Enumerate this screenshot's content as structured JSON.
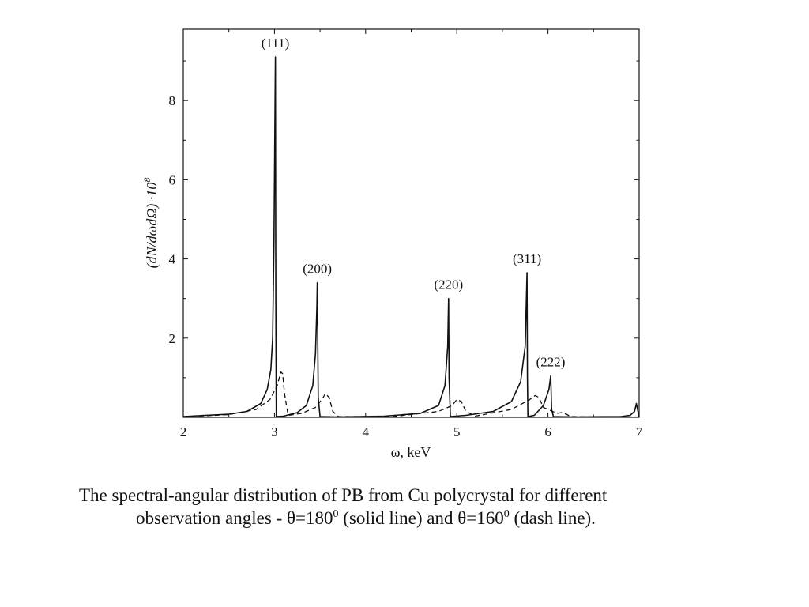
{
  "chart_data": {
    "type": "line",
    "xlabel": "ω, keV",
    "ylabel_main": "(dN/dωdΩ) ·10",
    "ylabel_exp": "8",
    "xlim": [
      2,
      7
    ],
    "ylim": [
      0,
      9.8
    ],
    "x_ticks": [
      "2",
      "3",
      "4",
      "5",
      "6",
      "7"
    ],
    "y_ticks": [
      "2",
      "4",
      "6",
      "8"
    ],
    "grid": false,
    "peaks": [
      {
        "label": "(111)",
        "x": 3.01,
        "y": 9.1
      },
      {
        "label": "(200)",
        "x": 3.47,
        "y": 3.4
      },
      {
        "label": "(220)",
        "x": 4.91,
        "y": 3.0
      },
      {
        "label": "(311)",
        "x": 5.77,
        "y": 3.65
      },
      {
        "label": "(222)",
        "x": 6.03,
        "y": 1.05
      }
    ],
    "series": [
      {
        "line_style": "solid",
        "x": [
          2.0,
          2.5,
          2.7,
          2.85,
          2.92,
          2.96,
          2.98,
          2.995,
          3.01,
          3.015,
          3.02,
          3.1,
          3.25,
          3.35,
          3.42,
          3.45,
          3.465,
          3.47,
          3.48,
          3.5,
          3.7,
          4.2,
          4.6,
          4.8,
          4.87,
          4.9,
          4.91,
          4.915,
          4.93,
          5.1,
          5.4,
          5.6,
          5.7,
          5.75,
          5.77,
          5.775,
          5.78,
          5.85,
          5.95,
          6.01,
          6.03,
          6.04,
          6.06,
          6.3,
          6.8,
          6.9,
          6.95,
          6.97,
          7.0
        ],
        "y": [
          0.02,
          0.08,
          0.15,
          0.35,
          0.7,
          1.2,
          2.0,
          4.5,
          9.1,
          3.0,
          0.02,
          0.03,
          0.12,
          0.3,
          0.8,
          1.6,
          2.8,
          3.4,
          0.5,
          0.02,
          0.01,
          0.03,
          0.1,
          0.3,
          0.8,
          1.8,
          3.0,
          1.0,
          0.02,
          0.05,
          0.15,
          0.4,
          0.9,
          1.8,
          3.65,
          1.0,
          0.02,
          0.05,
          0.3,
          0.7,
          1.05,
          0.2,
          0.02,
          0.01,
          0.02,
          0.05,
          0.15,
          0.35,
          0.0
        ]
      },
      {
        "line_style": "dashed",
        "x": [
          2.0,
          2.5,
          2.8,
          2.95,
          3.03,
          3.07,
          3.09,
          3.11,
          3.15,
          3.3,
          3.45,
          3.52,
          3.56,
          3.6,
          3.64,
          3.7,
          4.3,
          4.8,
          4.95,
          5.0,
          5.05,
          5.1,
          5.2,
          5.6,
          5.8,
          5.86,
          5.9,
          5.95,
          6.1,
          6.15,
          6.2,
          6.25,
          6.5,
          7.0
        ],
        "y": [
          0.01,
          0.07,
          0.2,
          0.45,
          0.8,
          1.15,
          1.1,
          0.6,
          0.05,
          0.1,
          0.25,
          0.45,
          0.6,
          0.5,
          0.15,
          0.02,
          0.02,
          0.15,
          0.3,
          0.45,
          0.4,
          0.15,
          0.03,
          0.2,
          0.45,
          0.55,
          0.5,
          0.25,
          0.1,
          0.12,
          0.08,
          0.02,
          0.01,
          0.01
        ]
      }
    ]
  },
  "caption": {
    "line1": "The spectral-angular distribution of PB from Cu polycrystal for different",
    "line2_a": "observation angles - θ=180",
    "line2_sup1": "0",
    "line2_b": " (solid line) and θ=160",
    "line2_sup2": "0",
    "line2_c": " (dash line)."
  }
}
